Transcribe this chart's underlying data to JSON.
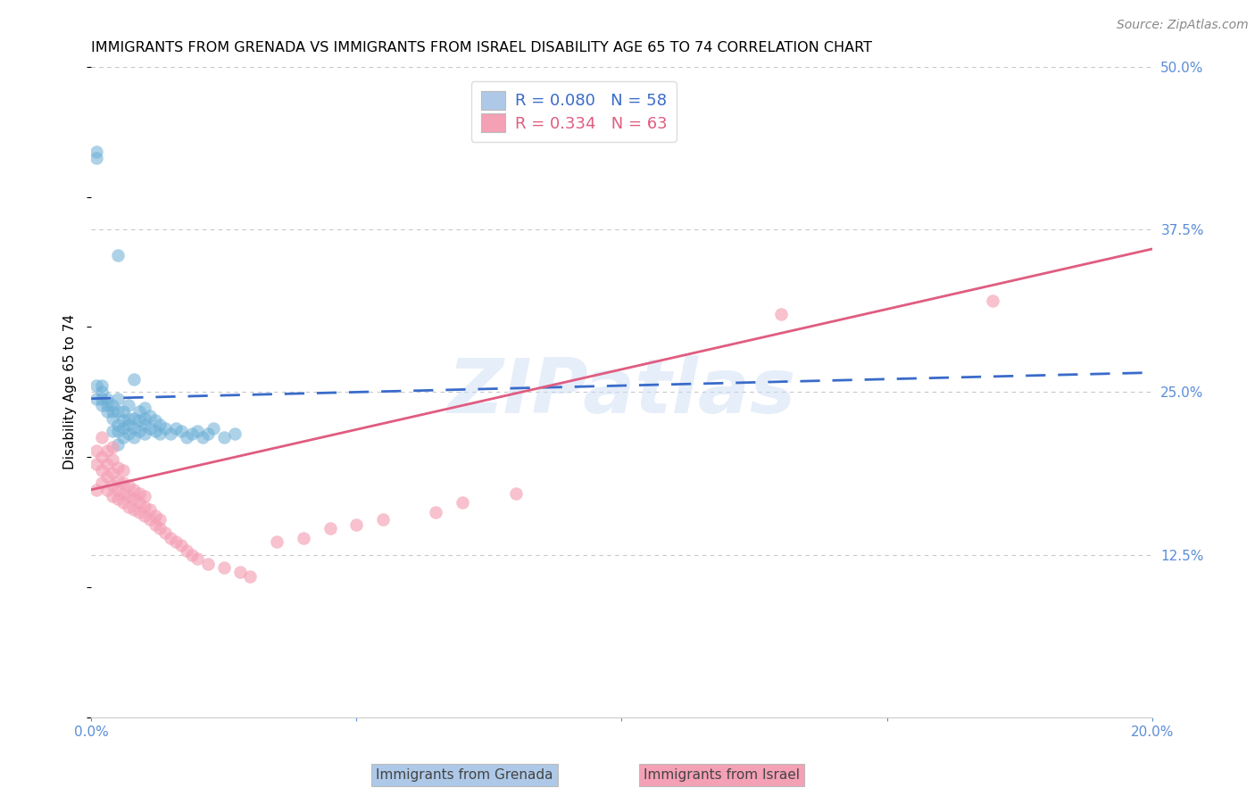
{
  "title": "IMMIGRANTS FROM GRENADA VS IMMIGRANTS FROM ISRAEL DISABILITY AGE 65 TO 74 CORRELATION CHART",
  "source": "Source: ZipAtlas.com",
  "ylabel": "Disability Age 65 to 74",
  "x_min": 0.0,
  "x_max": 0.2,
  "y_min": 0.0,
  "y_max": 0.5,
  "x_ticks": [
    0.0,
    0.05,
    0.1,
    0.15,
    0.2
  ],
  "x_tick_labels": [
    "0.0%",
    "",
    "",
    "",
    "20.0%"
  ],
  "y_ticks": [
    0.0,
    0.125,
    0.25,
    0.375,
    0.5
  ],
  "y_tick_labels_right": [
    "",
    "12.5%",
    "25.0%",
    "37.5%",
    "50.0%"
  ],
  "grenada_R": 0.08,
  "grenada_N": 58,
  "israel_R": 0.334,
  "israel_N": 63,
  "grenada_color": "#6baed6",
  "israel_color": "#f4a0b5",
  "grenada_line_color": "#3a6bc9",
  "israel_line_color": "#e05c80",
  "background_color": "#ffffff",
  "grid_color": "#c8c8c8",
  "legend_box_color_grenada": "#aec9e8",
  "legend_box_color_israel": "#f4a0b5",
  "watermark": "ZIPatlas",
  "title_fontsize": 11.5,
  "axis_label_fontsize": 11,
  "tick_fontsize": 11,
  "legend_fontsize": 13,
  "source_fontsize": 10,
  "right_tick_color": "#5b8dd9",
  "bottom_tick_color": "#5b8dd9",
  "grenada_x": [
    0.001,
    0.001,
    0.002,
    0.002,
    0.002,
    0.002,
    0.003,
    0.003,
    0.003,
    0.004,
    0.004,
    0.004,
    0.004,
    0.005,
    0.005,
    0.005,
    0.005,
    0.005,
    0.006,
    0.006,
    0.006,
    0.006,
    0.007,
    0.007,
    0.007,
    0.007,
    0.008,
    0.008,
    0.008,
    0.009,
    0.009,
    0.009,
    0.01,
    0.01,
    0.01,
    0.01,
    0.011,
    0.011,
    0.012,
    0.012,
    0.013,
    0.013,
    0.014,
    0.015,
    0.016,
    0.017,
    0.018,
    0.019,
    0.02,
    0.021,
    0.022,
    0.023,
    0.025,
    0.027,
    0.001,
    0.001,
    0.005,
    0.008
  ],
  "grenada_y": [
    0.245,
    0.255,
    0.24,
    0.245,
    0.25,
    0.255,
    0.235,
    0.24,
    0.245,
    0.22,
    0.23,
    0.235,
    0.24,
    0.21,
    0.22,
    0.225,
    0.235,
    0.245,
    0.215,
    0.222,
    0.228,
    0.235,
    0.218,
    0.225,
    0.23,
    0.24,
    0.215,
    0.222,
    0.23,
    0.22,
    0.228,
    0.235,
    0.218,
    0.225,
    0.23,
    0.238,
    0.222,
    0.232,
    0.22,
    0.228,
    0.218,
    0.225,
    0.222,
    0.218,
    0.222,
    0.22,
    0.215,
    0.218,
    0.22,
    0.215,
    0.218,
    0.222,
    0.215,
    0.218,
    0.43,
    0.435,
    0.355,
    0.26
  ],
  "israel_x": [
    0.001,
    0.001,
    0.001,
    0.002,
    0.002,
    0.002,
    0.002,
    0.003,
    0.003,
    0.003,
    0.003,
    0.004,
    0.004,
    0.004,
    0.004,
    0.004,
    0.005,
    0.005,
    0.005,
    0.005,
    0.006,
    0.006,
    0.006,
    0.006,
    0.007,
    0.007,
    0.007,
    0.008,
    0.008,
    0.008,
    0.009,
    0.009,
    0.009,
    0.01,
    0.01,
    0.01,
    0.011,
    0.011,
    0.012,
    0.012,
    0.013,
    0.013,
    0.014,
    0.015,
    0.016,
    0.017,
    0.018,
    0.019,
    0.02,
    0.022,
    0.025,
    0.028,
    0.03,
    0.035,
    0.04,
    0.045,
    0.05,
    0.055,
    0.065,
    0.07,
    0.08,
    0.13,
    0.17
  ],
  "israel_y": [
    0.175,
    0.195,
    0.205,
    0.18,
    0.19,
    0.2,
    0.215,
    0.175,
    0.185,
    0.195,
    0.205,
    0.17,
    0.178,
    0.188,
    0.198,
    0.208,
    0.168,
    0.175,
    0.182,
    0.192,
    0.165,
    0.172,
    0.18,
    0.19,
    0.162,
    0.17,
    0.178,
    0.16,
    0.168,
    0.175,
    0.158,
    0.165,
    0.172,
    0.155,
    0.162,
    0.17,
    0.152,
    0.16,
    0.148,
    0.155,
    0.145,
    0.152,
    0.142,
    0.138,
    0.135,
    0.132,
    0.128,
    0.125,
    0.122,
    0.118,
    0.115,
    0.112,
    0.108,
    0.135,
    0.138,
    0.145,
    0.148,
    0.152,
    0.158,
    0.165,
    0.172,
    0.31,
    0.32
  ]
}
